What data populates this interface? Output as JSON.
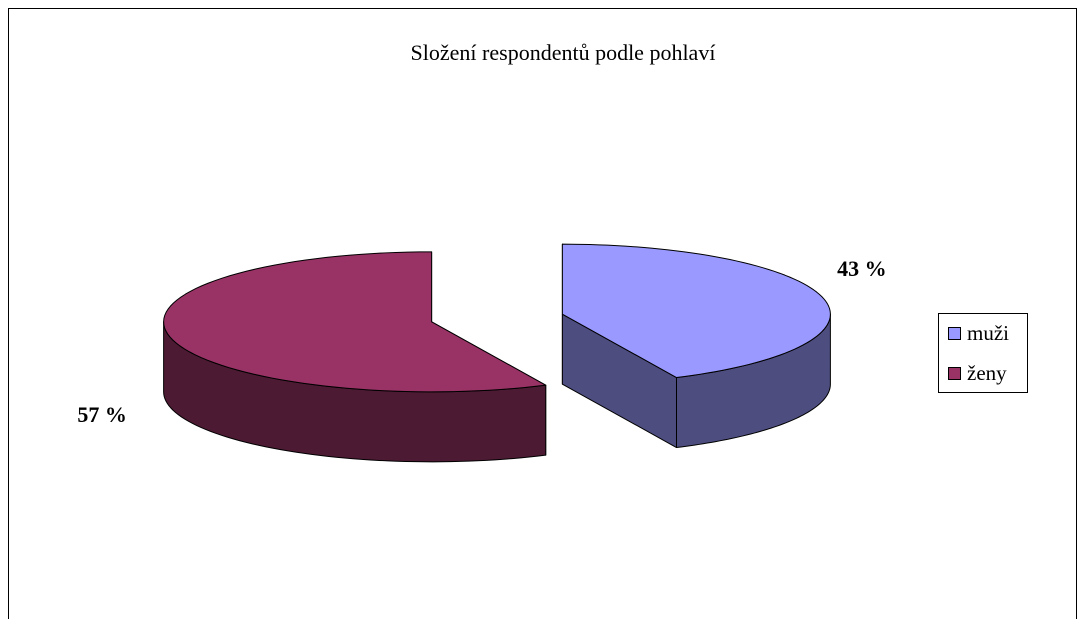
{
  "chart_data": {
    "type": "pie3d",
    "title": "Složení respondentů podle pohlaví",
    "categories": [
      "muži",
      "ženy"
    ],
    "values": [
      43,
      57
    ],
    "value_labels": [
      "43 %",
      "57 %"
    ],
    "colors": [
      "#9999ff",
      "#993366"
    ],
    "legend": "right"
  }
}
